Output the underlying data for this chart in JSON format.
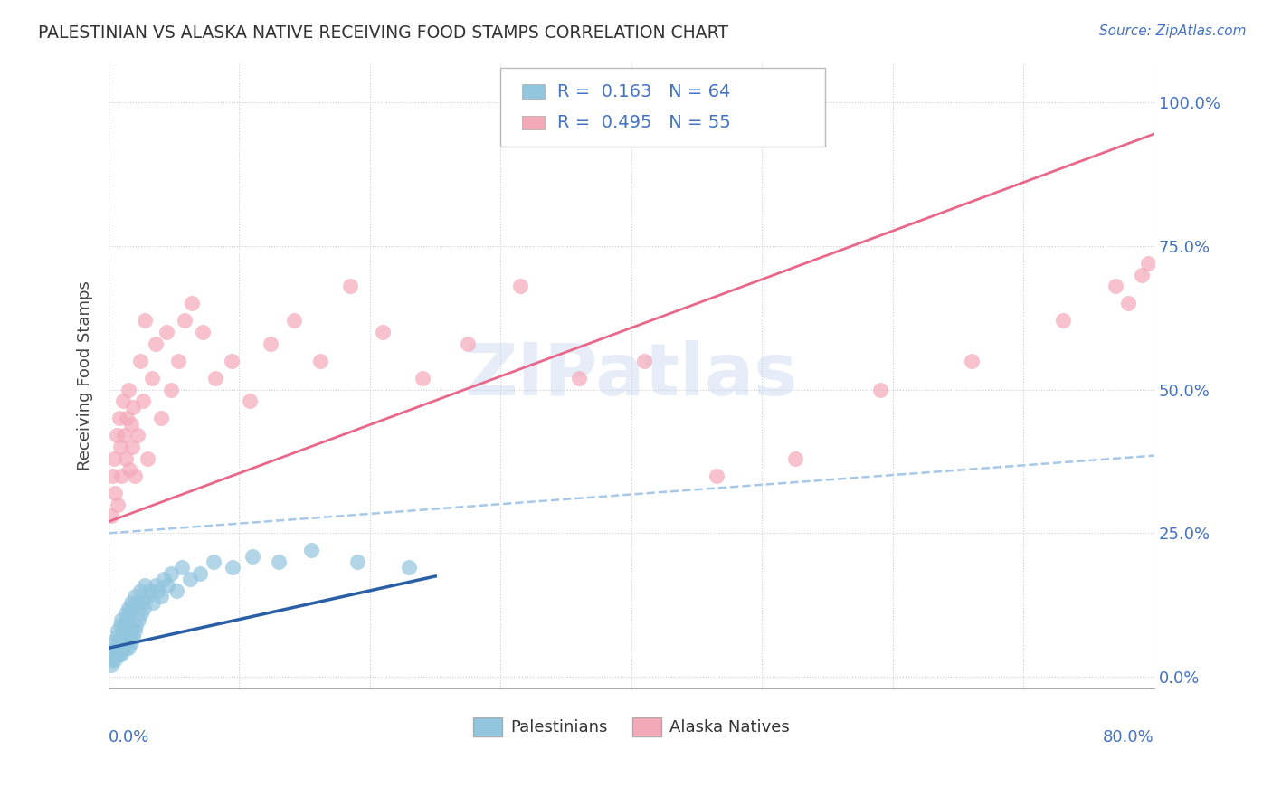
{
  "title": "PALESTINIAN VS ALASKA NATIVE RECEIVING FOOD STAMPS CORRELATION CHART",
  "source": "Source: ZipAtlas.com",
  "ylabel": "Receiving Food Stamps",
  "yticks": [
    "0.0%",
    "25.0%",
    "50.0%",
    "75.0%",
    "100.0%"
  ],
  "ytick_vals": [
    0.0,
    0.25,
    0.5,
    0.75,
    1.0
  ],
  "xlim": [
    0.0,
    0.8
  ],
  "ylim": [
    -0.02,
    1.07
  ],
  "blue_color": "#92c5de",
  "pink_color": "#f4a9b8",
  "blue_line_color": "#2b5fa5",
  "pink_line_color": "#e8678a",
  "dash_line_color": "#a8c8e8",
  "palestinians_x": [
    0.002,
    0.003,
    0.004,
    0.004,
    0.005,
    0.005,
    0.006,
    0.006,
    0.007,
    0.007,
    0.008,
    0.008,
    0.009,
    0.009,
    0.01,
    0.01,
    0.01,
    0.011,
    0.011,
    0.012,
    0.012,
    0.013,
    0.013,
    0.014,
    0.014,
    0.015,
    0.015,
    0.016,
    0.016,
    0.017,
    0.017,
    0.018,
    0.018,
    0.019,
    0.02,
    0.02,
    0.021,
    0.022,
    0.023,
    0.024,
    0.025,
    0.026,
    0.027,
    0.028,
    0.03,
    0.032,
    0.034,
    0.036,
    0.038,
    0.04,
    0.042,
    0.045,
    0.048,
    0.052,
    0.056,
    0.062,
    0.07,
    0.08,
    0.095,
    0.11,
    0.13,
    0.155,
    0.19,
    0.23
  ],
  "palestinians_y": [
    0.02,
    0.03,
    0.04,
    0.06,
    0.03,
    0.05,
    0.04,
    0.07,
    0.05,
    0.08,
    0.04,
    0.06,
    0.05,
    0.09,
    0.04,
    0.06,
    0.1,
    0.05,
    0.08,
    0.06,
    0.09,
    0.05,
    0.11,
    0.06,
    0.1,
    0.05,
    0.12,
    0.07,
    0.11,
    0.06,
    0.13,
    0.08,
    0.12,
    0.07,
    0.08,
    0.14,
    0.09,
    0.13,
    0.1,
    0.15,
    0.11,
    0.13,
    0.12,
    0.16,
    0.14,
    0.15,
    0.13,
    0.16,
    0.15,
    0.14,
    0.17,
    0.16,
    0.18,
    0.15,
    0.19,
    0.17,
    0.18,
    0.2,
    0.19,
    0.21,
    0.2,
    0.22,
    0.2,
    0.19
  ],
  "alaska_x": [
    0.002,
    0.003,
    0.004,
    0.005,
    0.006,
    0.007,
    0.008,
    0.009,
    0.01,
    0.011,
    0.012,
    0.013,
    0.014,
    0.015,
    0.016,
    0.017,
    0.018,
    0.019,
    0.02,
    0.022,
    0.024,
    0.026,
    0.028,
    0.03,
    0.033,
    0.036,
    0.04,
    0.044,
    0.048,
    0.053,
    0.058,
    0.064,
    0.072,
    0.082,
    0.094,
    0.108,
    0.124,
    0.142,
    0.162,
    0.185,
    0.21,
    0.24,
    0.275,
    0.315,
    0.36,
    0.41,
    0.465,
    0.525,
    0.59,
    0.66,
    0.73,
    0.77,
    0.78,
    0.79,
    0.795
  ],
  "alaska_y": [
    0.28,
    0.35,
    0.38,
    0.32,
    0.42,
    0.3,
    0.45,
    0.4,
    0.35,
    0.48,
    0.42,
    0.38,
    0.45,
    0.5,
    0.36,
    0.44,
    0.4,
    0.47,
    0.35,
    0.42,
    0.55,
    0.48,
    0.62,
    0.38,
    0.52,
    0.58,
    0.45,
    0.6,
    0.5,
    0.55,
    0.62,
    0.65,
    0.6,
    0.52,
    0.55,
    0.48,
    0.58,
    0.62,
    0.55,
    0.68,
    0.6,
    0.52,
    0.58,
    0.68,
    0.52,
    0.55,
    0.35,
    0.38,
    0.5,
    0.55,
    0.62,
    0.68,
    0.65,
    0.7,
    0.72
  ],
  "pal_line_x": [
    0.0,
    0.25
  ],
  "pal_line_y": [
    0.05,
    0.175
  ],
  "aln_line_x": [
    0.0,
    0.8
  ],
  "aln_line_y": [
    0.27,
    0.945
  ],
  "dash_line_x": [
    0.0,
    0.8
  ],
  "dash_line_y": [
    0.25,
    0.385
  ]
}
